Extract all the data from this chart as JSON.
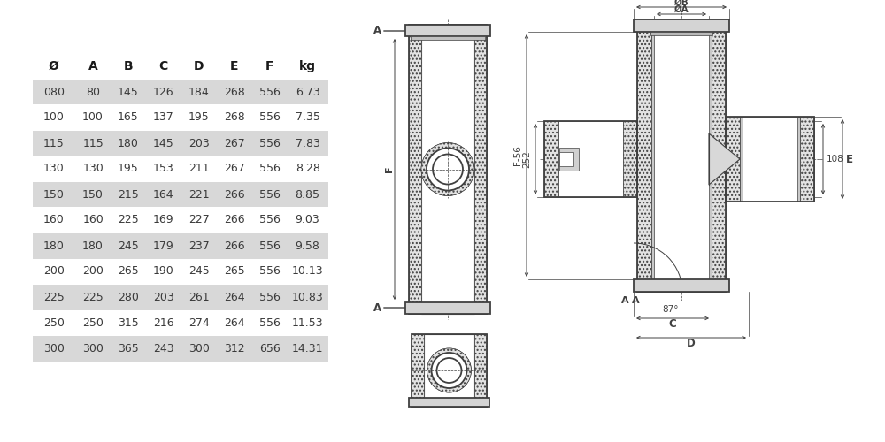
{
  "table_headers": [
    "Ø",
    "A",
    "B",
    "C",
    "D",
    "E",
    "F",
    "kg"
  ],
  "table_rows": [
    [
      "080",
      "80",
      "145",
      "126",
      "184",
      "268",
      "556",
      "6.73"
    ],
    [
      "100",
      "100",
      "165",
      "137",
      "195",
      "268",
      "556",
      "7.35"
    ],
    [
      "115",
      "115",
      "180",
      "145",
      "203",
      "267",
      "556",
      "7.83"
    ],
    [
      "130",
      "130",
      "195",
      "153",
      "211",
      "267",
      "556",
      "8.28"
    ],
    [
      "150",
      "150",
      "215",
      "164",
      "221",
      "266",
      "556",
      "8.85"
    ],
    [
      "160",
      "160",
      "225",
      "169",
      "227",
      "266",
      "556",
      "9.03"
    ],
    [
      "180",
      "180",
      "245",
      "179",
      "237",
      "266",
      "556",
      "9.58"
    ],
    [
      "200",
      "200",
      "265",
      "190",
      "245",
      "265",
      "556",
      "10.13"
    ],
    [
      "225",
      "225",
      "280",
      "203",
      "261",
      "264",
      "556",
      "10.83"
    ],
    [
      "250",
      "250",
      "315",
      "216",
      "274",
      "264",
      "556",
      "11.53"
    ],
    [
      "300",
      "300",
      "365",
      "243",
      "300",
      "312",
      "656",
      "14.31"
    ]
  ],
  "shaded_rows": [
    0,
    2,
    4,
    6,
    8,
    10
  ],
  "row_bg_shaded": "#d8d8d8",
  "row_bg_plain": "#ffffff",
  "text_color": "#3a3a3a",
  "header_text_color": "#1a1a1a",
  "bg_color": "#ffffff",
  "font_size": 9.0,
  "header_font_size": 10.0
}
